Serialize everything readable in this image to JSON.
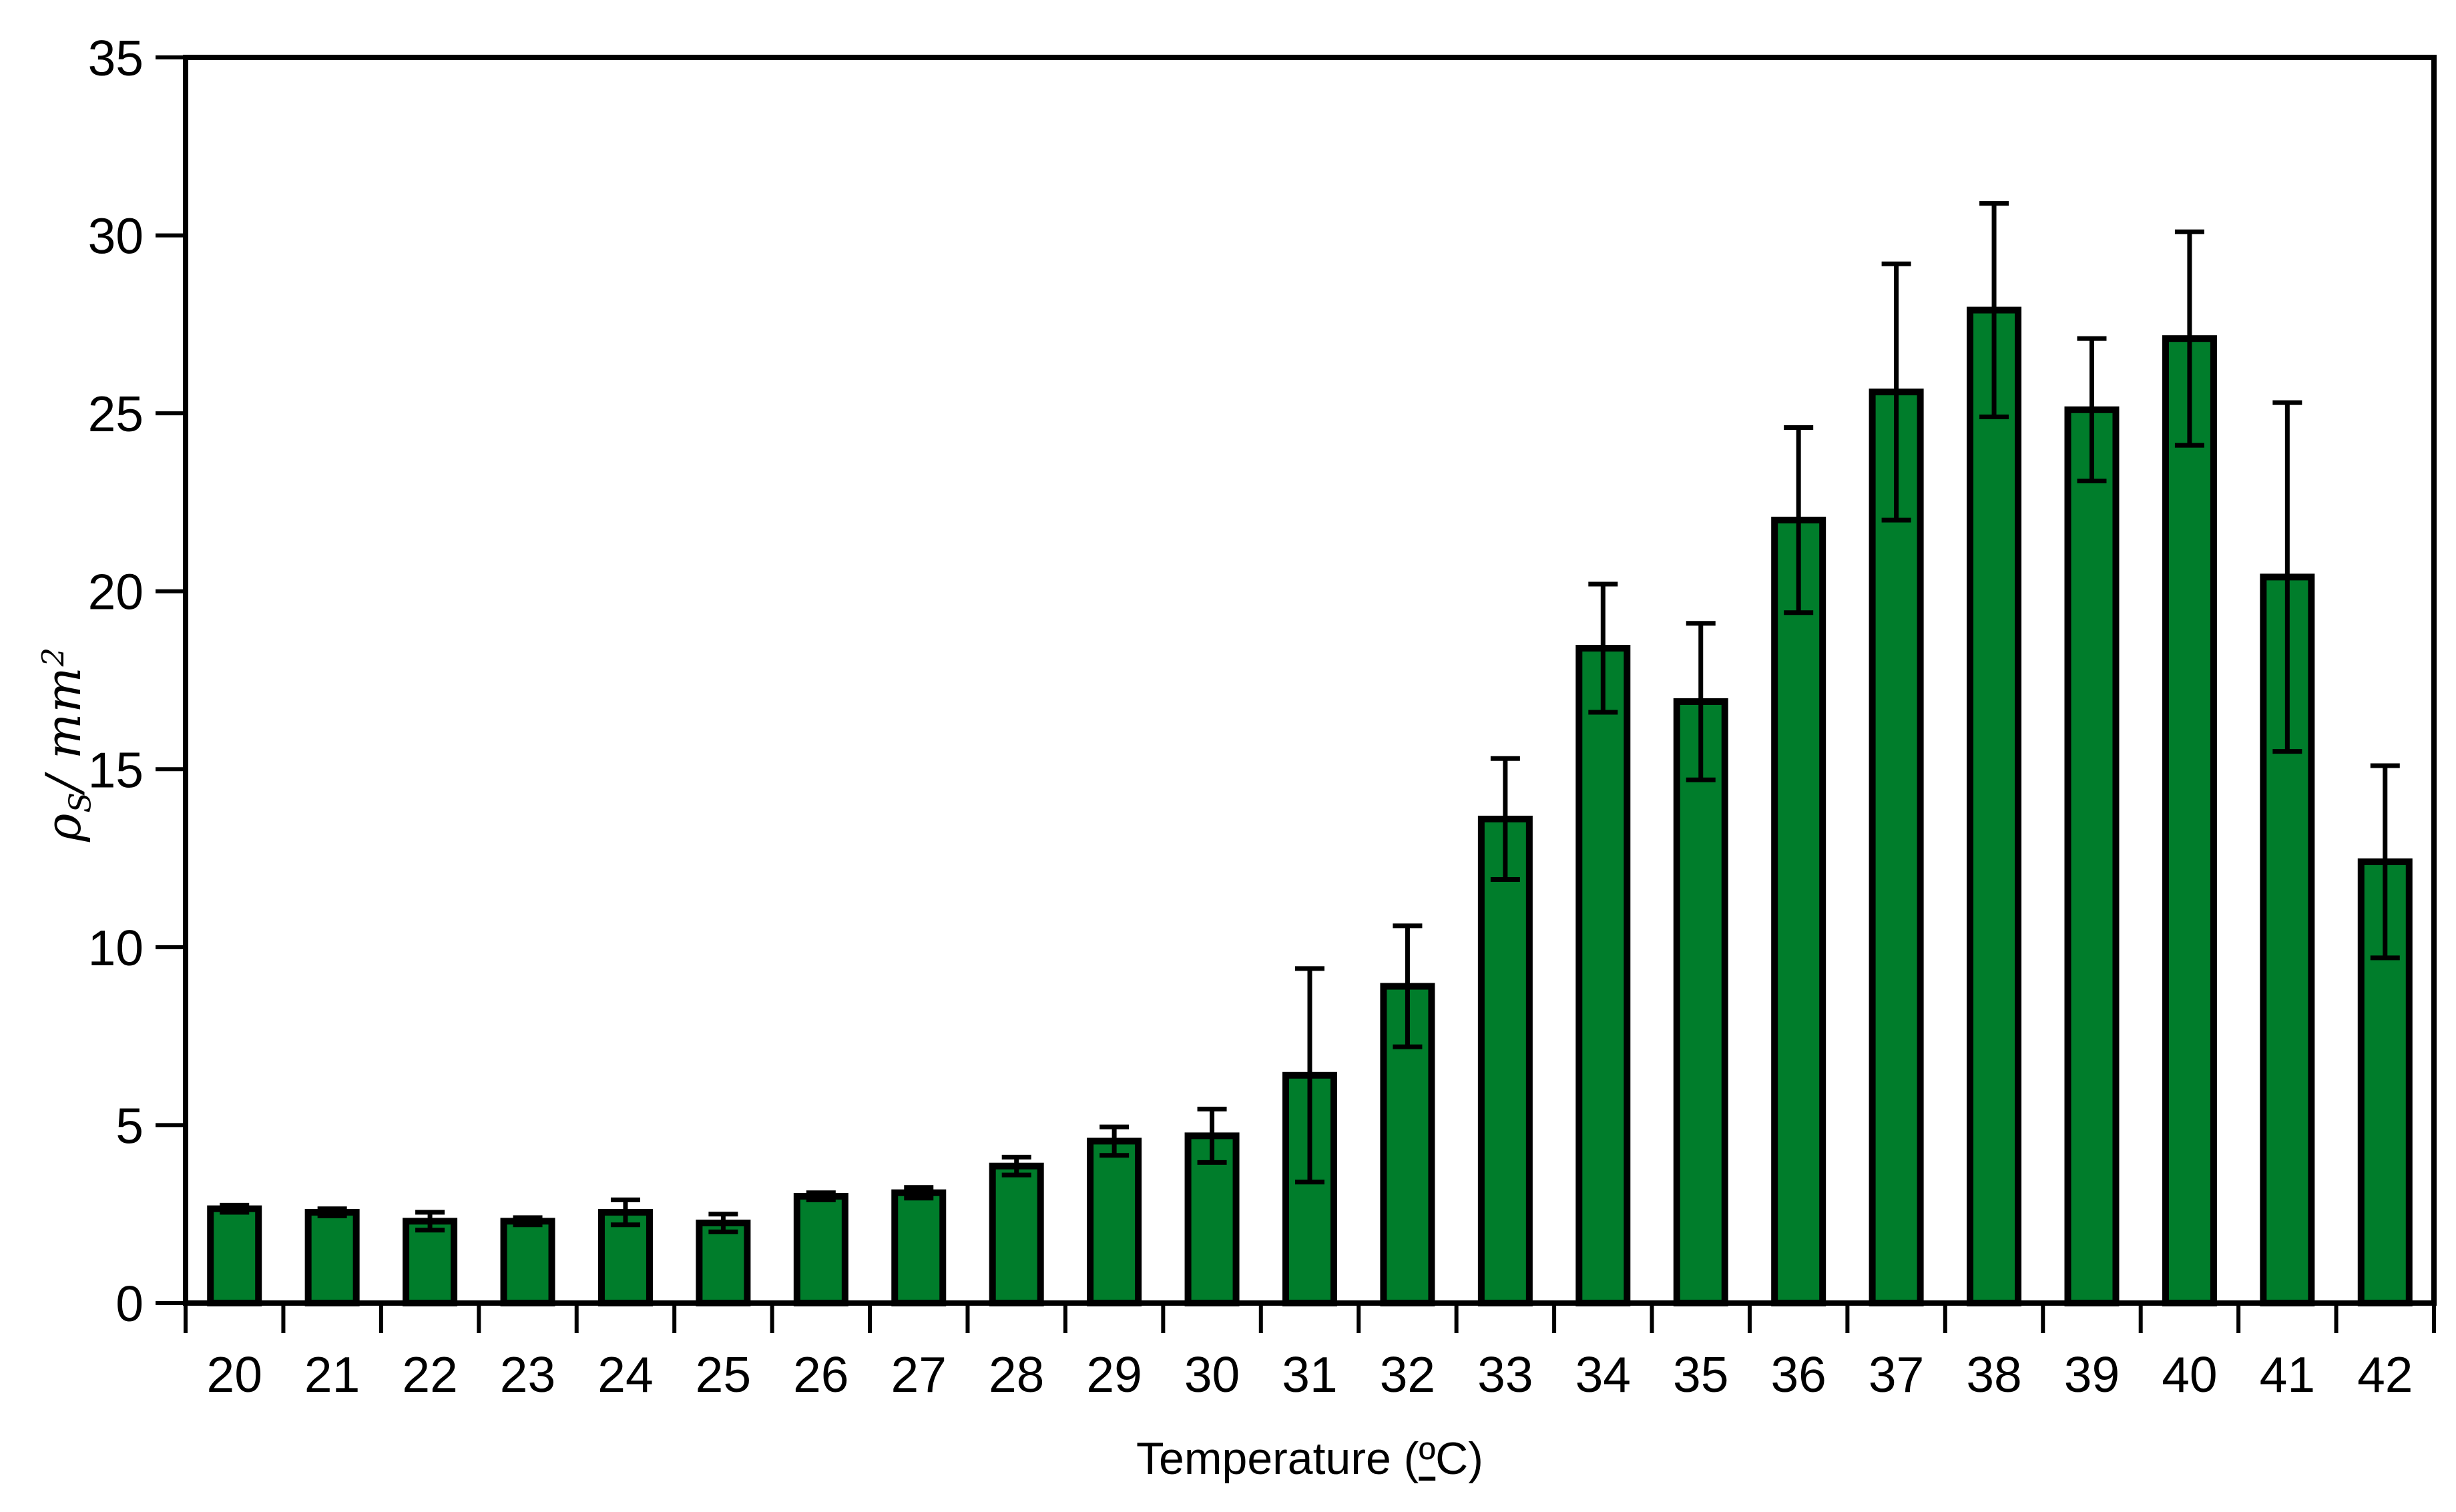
{
  "figure": {
    "background_color": "#ffffff",
    "text_color": "#000000"
  },
  "chart_data": {
    "type": "bar",
    "title": "",
    "xlabel": "Temperature (ºC)",
    "xlabel_parts": {
      "pre": "Temperature (",
      "ordinal": "º",
      "post": "C)"
    },
    "ylabel": "ρS/ mm2",
    "ylabel_parts": {
      "rho": "ρ",
      "sub": "S",
      "mid": "/ mm",
      "sup": "2"
    },
    "categories": [
      20,
      21,
      22,
      23,
      24,
      25,
      26,
      27,
      28,
      29,
      30,
      31,
      32,
      33,
      34,
      35,
      36,
      37,
      38,
      39,
      40,
      41,
      42
    ],
    "values": [
      2.65,
      2.55,
      2.3,
      2.3,
      2.55,
      2.25,
      3.0,
      3.1,
      3.85,
      4.55,
      4.7,
      6.4,
      8.9,
      13.6,
      18.4,
      16.9,
      22.0,
      25.6,
      27.9,
      25.1,
      27.1,
      20.4,
      12.4
    ],
    "errors": [
      0.1,
      0.1,
      0.25,
      0.1,
      0.35,
      0.25,
      0.1,
      0.15,
      0.25,
      0.4,
      0.75,
      3.0,
      1.7,
      1.7,
      1.8,
      2.2,
      2.6,
      3.6,
      3.0,
      2.0,
      3.0,
      4.9,
      2.7
    ],
    "yticks": [
      0,
      5,
      10,
      15,
      20,
      25,
      30,
      35
    ],
    "ylim": [
      0,
      35
    ],
    "grid": "off",
    "frame": "full-box",
    "legend": "none",
    "bar_color": "#007d2b",
    "bar_border_color": "#000000",
    "error_bar_color": "#000000",
    "axis_color": "#000000"
  }
}
